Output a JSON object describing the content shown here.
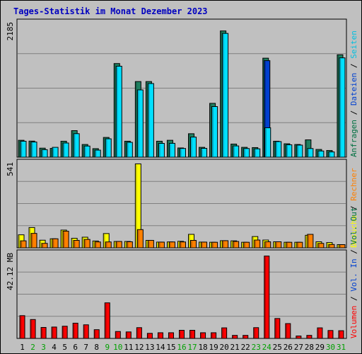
{
  "chart_data": {
    "type": "bar",
    "title": "Tages-Statistik im Monat Dezember 2023",
    "categories": [
      "1",
      "2",
      "3",
      "4",
      "5",
      "6",
      "7",
      "8",
      "9",
      "10",
      "11",
      "12",
      "13",
      "14",
      "15",
      "16",
      "17",
      "18",
      "19",
      "20",
      "21",
      "22",
      "23",
      "24",
      "25",
      "26",
      "27",
      "28",
      "29",
      "30",
      "31"
    ],
    "weekend_days": [
      "2",
      "3",
      "9",
      "10",
      "16",
      "17",
      "23",
      "24",
      "30",
      "31"
    ],
    "panels": [
      {
        "id": "requests",
        "max_label": "2185",
        "ymax": 2185,
        "legend": [
          {
            "text": "Anfragen",
            "color": "#007040"
          },
          {
            "text": " / ",
            "color": "#000000"
          },
          {
            "text": "Dateien",
            "color": "#0040d0"
          },
          {
            "text": " / ",
            "color": "#000000"
          },
          {
            "text": "Seiten",
            "color": "#00c0e0"
          }
        ],
        "series": [
          {
            "name": "Anfragen",
            "color": "#208060",
            "values": [
              273,
              260,
              146,
              142,
              258,
              429,
              205,
              138,
              319,
              1513,
              258,
              1222,
              1222,
              258,
              273,
              149,
              379,
              159,
              870,
              2040,
              212,
              159,
              155,
              1600,
              258,
              217,
              205,
              280,
              125,
              108,
              1655
            ]
          },
          {
            "name": "Dateien",
            "color": "#0040d0",
            "values": [
              0,
              0,
              0,
              0,
              0,
              0,
              0,
              0,
              0,
              0,
              0,
              0,
              0,
              0,
              0,
              0,
              0,
              0,
              0,
              0,
              0,
              0,
              0,
              1560,
              0,
              0,
              0,
              0,
              0,
              0,
              0
            ]
          },
          {
            "name": "Seiten",
            "color": "#00e0ff",
            "values": [
              258,
              245,
              121,
              159,
              229,
              380,
              180,
              114,
              297,
              1470,
              240,
              1087,
              1190,
              223,
              224,
              141,
              325,
              143,
              818,
              2000,
              182,
              140,
              135,
              475,
              252,
              200,
              195,
              140,
              100,
              85,
              1605
            ]
          }
        ]
      },
      {
        "id": "visits",
        "max_label": "541",
        "ymax": 541,
        "legend": [
          {
            "text": "Besuche",
            "color": "#ffff00"
          },
          {
            "text": " / ",
            "color": "#000000"
          },
          {
            "text": "Rechner",
            "color": "#ff8000"
          }
        ],
        "series": [
          {
            "name": "Besuche",
            "color": "#ffff00",
            "values": [
              82,
              128,
              48,
              57,
              112,
              60,
              67,
              43,
              90,
              40,
              40,
              530,
              47,
              36,
              37,
              41,
              85,
              36,
              35,
              45,
              44,
              35,
              71,
              49,
              38,
              35,
              35,
              79,
              38,
              33,
              20
            ]
          },
          {
            "name": "Rechner",
            "color": "#ff8000",
            "values": [
              44,
              91,
              28,
              57,
              105,
              47,
              53,
              37,
              37,
              40,
              38,
              115,
              47,
              36,
              37,
              37,
              47,
              36,
              35,
              45,
              40,
              35,
              49,
              38,
              38,
              35,
              35,
              85,
              28,
              21,
              20
            ]
          }
        ]
      },
      {
        "id": "volume",
        "max_label": "42.12 MB",
        "ymax": 42.12,
        "legend": [
          {
            "text": "Volumen",
            "color": "#ff0000"
          },
          {
            "text": " / ",
            "color": "#000000"
          },
          {
            "text": "Vol. In",
            "color": "#0040d0"
          },
          {
            "text": " / ",
            "color": "#000000"
          },
          {
            "text": "Vol. Out",
            "color": "#007040"
          }
        ],
        "series": [
          {
            "name": "Volumen",
            "color": "#ff0000",
            "values": [
              11.2,
              9.3,
              5.4,
              5.6,
              6.0,
              7.5,
              6.7,
              4.3,
              17.5,
              3.4,
              3.2,
              5.3,
              2.5,
              2.8,
              2.8,
              4.0,
              4.0,
              2.8,
              2.8,
              5.2,
              1.5,
              1.5,
              5.3,
              40.5,
              9.8,
              7.3,
              1.2,
              1.5,
              5.2,
              3.9,
              3.8
            ]
          }
        ]
      }
    ],
    "legend_placement": "right, vertical",
    "grid": true
  },
  "colors": {
    "background": "#c0c0c0",
    "plot_background": "#c0c0c0",
    "grid": "#808080",
    "title": "#0000c0",
    "weekday_label": "#000000",
    "weekend_label": "#00a000"
  }
}
